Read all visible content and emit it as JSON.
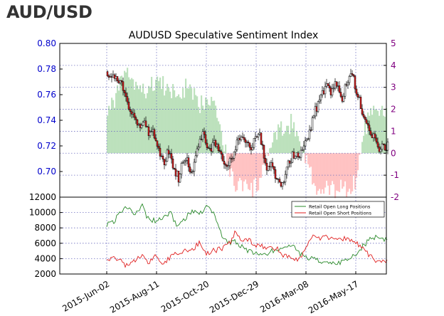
{
  "page_title": "AUD/USD",
  "colors": {
    "price_up": "#ffffff",
    "price_down": "#e02020",
    "candle_outline": "#000000",
    "sentiment_positive": "#a8d8a8",
    "sentiment_negative": "#ffb0b0",
    "long_line": "#2a8a2a",
    "short_line": "#e02020",
    "left_axis_text": "#0000cc",
    "right_axis_text": "#800080",
    "grid": "#7070c0"
  },
  "chart_data": [
    {
      "type": "line",
      "title": "AUDUSD Speculative Sentiment Index",
      "subtype": "candlestick with sentiment area",
      "left_axis": {
        "ylim": [
          0.68,
          0.8
        ],
        "ticks": [
          "0.70",
          "0.72",
          "0.74",
          "0.76",
          "0.78",
          "0.80"
        ]
      },
      "right_axis": {
        "ylim": [
          -2,
          5
        ],
        "ticks": [
          "-2",
          "-1",
          "0",
          "1",
          "2",
          "3",
          "4",
          "5"
        ]
      },
      "grid": true,
      "price_keypoints": {
        "t": [
          0,
          4,
          8,
          12,
          16,
          20,
          24,
          28,
          32,
          36,
          40,
          44,
          48,
          52,
          56,
          60,
          63,
          66,
          70,
          75,
          80,
          85,
          90,
          95,
          100,
          105,
          110,
          115,
          120,
          125,
          130,
          135,
          140,
          145,
          150,
          155,
          160,
          165,
          170,
          175,
          180,
          185,
          190,
          195,
          200,
          205,
          210,
          215,
          220,
          225,
          230,
          235,
          240,
          245,
          250,
          255,
          260,
          265,
          270,
          275,
          280,
          285,
          290,
          295,
          300,
          305,
          310,
          315,
          320,
          325,
          330,
          335,
          340,
          345,
          350
        ],
        "close": [
          0.778,
          0.771,
          0.775,
          0.772,
          0.766,
          0.77,
          0.762,
          0.754,
          0.75,
          0.744,
          0.741,
          0.737,
          0.735,
          0.74,
          0.732,
          0.728,
          0.733,
          0.726,
          0.719,
          0.712,
          0.707,
          0.715,
          0.708,
          0.701,
          0.695,
          0.705,
          0.712,
          0.703,
          0.699,
          0.715,
          0.726,
          0.731,
          0.72,
          0.716,
          0.724,
          0.718,
          0.712,
          0.705,
          0.707,
          0.71,
          0.718,
          0.726,
          0.73,
          0.725,
          0.717,
          0.722,
          0.73,
          0.726,
          0.711,
          0.702,
          0.704,
          0.699,
          0.692,
          0.688,
          0.698,
          0.707,
          0.713,
          0.715,
          0.71,
          0.718,
          0.724,
          0.733,
          0.744,
          0.752,
          0.758,
          0.763,
          0.767,
          0.76,
          0.77,
          0.764,
          0.758,
          0.768,
          0.776,
          0.775,
          0.763
        ]
      },
      "price_tail": {
        "t": [
          350,
          354,
          358,
          362,
          366,
          370,
          374,
          378,
          382,
          386,
          390,
          394
        ],
        "close": [
          0.763,
          0.755,
          0.745,
          0.738,
          0.733,
          0.727,
          0.731,
          0.724,
          0.718,
          0.722,
          0.716,
          0.724
        ]
      },
      "sentiment_keypoints": {
        "t": [
          0,
          10,
          20,
          30,
          40,
          50,
          60,
          70,
          80,
          90,
          100,
          110,
          120,
          130,
          140,
          150,
          160,
          165,
          170,
          180,
          190,
          200,
          210,
          220,
          230,
          240,
          250,
          260,
          270,
          280,
          290,
          300,
          310,
          320,
          330,
          340,
          350,
          360,
          370,
          380,
          390,
          394
        ],
        "ssi": [
          2.0,
          2.5,
          3.2,
          3.6,
          3.0,
          2.8,
          3.0,
          3.4,
          3.0,
          2.8,
          2.6,
          3.0,
          2.6,
          2.2,
          2.6,
          2.5,
          1.0,
          0.2,
          -0.6,
          -1.5,
          -1.3,
          -1.8,
          -1.4,
          -0.8,
          0.5,
          0.9,
          1.2,
          1.4,
          0.6,
          -0.2,
          -1.5,
          -1.9,
          -1.6,
          -1.7,
          -1.4,
          -1.8,
          -1.2,
          1.0,
          1.7,
          1.8,
          1.9,
          1.9
        ]
      },
      "x_ticks": [
        "2015-Jun-02",
        "2015-Aug-11",
        "2015-Oct-20",
        "2015-Dec-29",
        "2016-Mar-08",
        "2016-May-17"
      ]
    },
    {
      "type": "line",
      "ylim": [
        2000,
        12000
      ],
      "yticks": [
        "2000",
        "4000",
        "6000",
        "8000",
        "10000",
        "12000"
      ],
      "legend_position": "top-right",
      "grid": true,
      "series": [
        {
          "name": "Retail Open Long Positions",
          "t": [
            0,
            10,
            20,
            30,
            40,
            45,
            50,
            55,
            60,
            70,
            80,
            90,
            100,
            110,
            120,
            130,
            140,
            150,
            160,
            170,
            180,
            190,
            200,
            210,
            220,
            230,
            240,
            250,
            260,
            270,
            280,
            290,
            300,
            310,
            320,
            330,
            340,
            350,
            360,
            370,
            380,
            394
          ],
          "values": [
            8400,
            8800,
            10200,
            10800,
            9800,
            10500,
            10900,
            9700,
            9200,
            8800,
            9500,
            9800,
            8200,
            9200,
            10200,
            9800,
            10700,
            10000,
            7300,
            6100,
            6200,
            5600,
            5000,
            4700,
            4300,
            4900,
            5300,
            5200,
            5700,
            4700,
            4200,
            4000,
            3600,
            3300,
            3400,
            3600,
            3800,
            4600,
            5600,
            6600,
            6800,
            6500
          ]
        },
        {
          "name": "Retail Open Short Positions",
          "t": [
            0,
            10,
            20,
            30,
            40,
            50,
            60,
            70,
            80,
            90,
            100,
            110,
            120,
            130,
            140,
            150,
            160,
            170,
            180,
            190,
            200,
            210,
            220,
            230,
            240,
            250,
            260,
            270,
            280,
            290,
            300,
            310,
            320,
            330,
            340,
            350,
            360,
            370,
            380,
            394
          ],
          "values": [
            4000,
            4200,
            3600,
            3000,
            3900,
            4300,
            3500,
            4400,
            3400,
            4200,
            4700,
            5100,
            5100,
            6100,
            4700,
            5000,
            5300,
            5600,
            7300,
            6300,
            6500,
            5600,
            5600,
            5300,
            5300,
            4300,
            4300,
            3800,
            5300,
            7200,
            6600,
            6900,
            6300,
            6700,
            6400,
            6100,
            5300,
            4400,
            3600,
            3500
          ]
        }
      ]
    }
  ]
}
